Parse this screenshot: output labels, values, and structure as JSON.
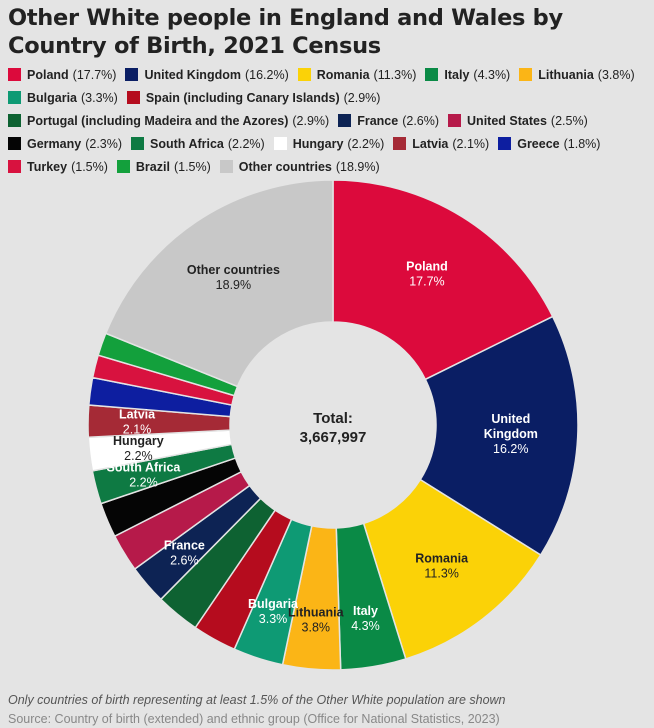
{
  "title": "Other White people in England and Wales by Country of Birth, 2021 Census",
  "center_label": {
    "title": "Total:",
    "value": "3,667,997"
  },
  "footnote": "Only countries of birth representing at least 1.5% of the Other White population are shown",
  "source": "Source: Country of birth (extended) and ethnic group (Office for National Statistics, 2023)",
  "chart_data": {
    "type": "pie",
    "donut": true,
    "title": "Other White people in England and Wales by Country of Birth, 2021 Census",
    "total": 3667997,
    "legend_position": "top",
    "slices": [
      {
        "name": "Poland",
        "legend_label": "Poland",
        "value": 17.7,
        "color": "#dc0a3c",
        "label_lines": [
          "Poland",
          "17.7%"
        ],
        "label_color": "#ffffff"
      },
      {
        "name": "United Kingdom",
        "legend_label": "United Kingdom",
        "value": 16.2,
        "color": "#0a1e64",
        "label_lines": [
          "United",
          "Kingdom",
          "16.2%"
        ],
        "label_color": "#ffffff"
      },
      {
        "name": "Romania",
        "legend_label": "Romania",
        "value": 11.3,
        "color": "#fbd207",
        "label_lines": [
          "Romania",
          "11.3%"
        ],
        "label_color": "#222222"
      },
      {
        "name": "Italy",
        "legend_label": "Italy",
        "value": 4.3,
        "color": "#0a8a46",
        "label_lines": [
          "Italy",
          "4.3%"
        ],
        "label_color": "#ffffff"
      },
      {
        "name": "Lithuania",
        "legend_label": "Lithuania",
        "value": 3.8,
        "color": "#fbb516",
        "label_lines": [
          "Lithuania",
          "3.8%"
        ],
        "label_color": "#222222"
      },
      {
        "name": "Bulgaria",
        "legend_label": "Bulgaria",
        "value": 3.3,
        "color": "#0e9a74",
        "label_lines": [
          "Bulgaria",
          "3.3%"
        ],
        "label_color": "#ffffff"
      },
      {
        "name": "Spain (including Canary Islands)",
        "legend_label": "Spain (including Canary Islands)",
        "value": 2.9,
        "color": "#b50c1e",
        "label_lines": [],
        "label_color": "#ffffff"
      },
      {
        "name": "Portugal (including Madeira and the Azores)",
        "legend_label": "Portugal (including Madeira and the Azores)",
        "value": 2.9,
        "color": "#0e6232",
        "label_lines": [],
        "label_color": "#ffffff"
      },
      {
        "name": "France",
        "legend_label": "France",
        "value": 2.6,
        "color": "#0d2354",
        "label_lines": [
          "France",
          "2.6%"
        ],
        "label_color": "#ffffff"
      },
      {
        "name": "United States",
        "legend_label": "United States",
        "value": 2.5,
        "color": "#b61a4a",
        "label_lines": [],
        "label_color": "#ffffff"
      },
      {
        "name": "Germany",
        "legend_label": "Germany",
        "value": 2.3,
        "color": "#050505",
        "label_lines": [],
        "label_color": "#ffffff"
      },
      {
        "name": "South Africa",
        "legend_label": "South Africa",
        "value": 2.2,
        "color": "#0e7a43",
        "label_lines": [
          "South Africa",
          "2.2%"
        ],
        "label_color": "#ffffff"
      },
      {
        "name": "Hungary",
        "legend_label": "Hungary",
        "value": 2.2,
        "color": "#ffffff",
        "label_lines": [
          "Hungary",
          "2.2%"
        ],
        "label_color": "#222222"
      },
      {
        "name": "Latvia",
        "legend_label": "Latvia",
        "value": 2.1,
        "color": "#a52a36",
        "label_lines": [
          "Latvia",
          "2.1%"
        ],
        "label_color": "#ffffff"
      },
      {
        "name": "Greece",
        "legend_label": "Greece",
        "value": 1.8,
        "color": "#0d1ea0",
        "label_lines": [],
        "label_color": "#ffffff"
      },
      {
        "name": "Turkey",
        "legend_label": "Turkey",
        "value": 1.5,
        "color": "#d8123f",
        "label_lines": [],
        "label_color": "#ffffff"
      },
      {
        "name": "Brazil",
        "legend_label": "Brazil",
        "value": 1.5,
        "color": "#13a03c",
        "label_lines": [],
        "label_color": "#ffffff"
      },
      {
        "name": "Other countries",
        "legend_label": "Other countries",
        "value": 18.9,
        "color": "#c8c8c8",
        "label_lines": [
          "Other countries",
          "18.9%"
        ],
        "label_color": "#222222"
      }
    ]
  }
}
